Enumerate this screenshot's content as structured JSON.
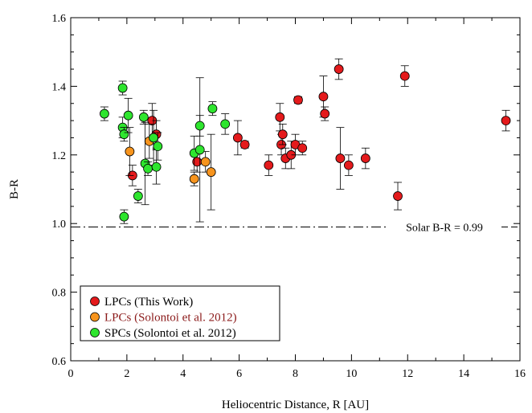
{
  "chart_data": {
    "type": "scatter",
    "xlabel": "Heliocentric Distance, R [AU]",
    "ylabel": "B-R",
    "xlim": [
      0,
      16
    ],
    "ylim": [
      0.6,
      1.6
    ],
    "xticks": [
      "0",
      "2",
      "4",
      "6",
      "8",
      "10",
      "12",
      "14",
      "16"
    ],
    "yticks": [
      "0.6",
      "0.8",
      "1.0",
      "1.2",
      "1.4",
      "1.6"
    ],
    "grid": false,
    "legend_position": "bottom-left",
    "reference_line": {
      "y": 0.99,
      "label": "Solar B-R = 0.99",
      "style": "dash-dot"
    },
    "series": [
      {
        "name": "LPCs (This Work)",
        "color": "#e41a1c",
        "label_color": "#000000",
        "points": [
          {
            "x": 2.2,
            "y": 1.14,
            "err": 0.03
          },
          {
            "x": 2.9,
            "y": 1.3,
            "err": 0.05
          },
          {
            "x": 3.05,
            "y": 1.26,
            "err": 0.04
          },
          {
            "x": 4.5,
            "y": 1.18,
            "err": 0.03
          },
          {
            "x": 5.95,
            "y": 1.25,
            "err": 0.05
          },
          {
            "x": 6.2,
            "y": 1.23,
            "err": 0.01
          },
          {
            "x": 7.05,
            "y": 1.17,
            "err": 0.03
          },
          {
            "x": 7.45,
            "y": 1.31,
            "err": 0.04
          },
          {
            "x": 7.5,
            "y": 1.23,
            "err": 0.03
          },
          {
            "x": 7.55,
            "y": 1.26,
            "err": 0.03
          },
          {
            "x": 7.65,
            "y": 1.19,
            "err": 0.03
          },
          {
            "x": 7.85,
            "y": 1.2,
            "err": 0.04
          },
          {
            "x": 8.0,
            "y": 1.23,
            "err": 0.03
          },
          {
            "x": 8.1,
            "y": 1.36,
            "err": 0.01
          },
          {
            "x": 8.25,
            "y": 1.22,
            "err": 0.02
          },
          {
            "x": 9.0,
            "y": 1.37,
            "err": 0.06
          },
          {
            "x": 9.05,
            "y": 1.32,
            "err": 0.02
          },
          {
            "x": 9.55,
            "y": 1.45,
            "err": 0.03
          },
          {
            "x": 9.6,
            "y": 1.19,
            "err": 0.09
          },
          {
            "x": 9.9,
            "y": 1.17,
            "err": 0.03
          },
          {
            "x": 10.5,
            "y": 1.19,
            "err": 0.03
          },
          {
            "x": 11.65,
            "y": 1.08,
            "err": 0.04
          },
          {
            "x": 11.9,
            "y": 1.43,
            "err": 0.03
          },
          {
            "x": 15.5,
            "y": 1.3,
            "err": 0.03
          }
        ]
      },
      {
        "name": "LPCs (Solontoi et al. 2012)",
        "color": "#f7941d",
        "label_color": "#8b1a1a",
        "points": [
          {
            "x": 2.1,
            "y": 1.21,
            "err": 0.07
          },
          {
            "x": 2.8,
            "y": 1.24,
            "err": 0.05
          },
          {
            "x": 4.4,
            "y": 1.13,
            "err": 0.02
          },
          {
            "x": 4.8,
            "y": 1.18,
            "err": 0.03
          },
          {
            "x": 5.0,
            "y": 1.15,
            "err": 0.11
          }
        ]
      },
      {
        "name": "SPCs (Solontoi et al. 2012)",
        "color": "#2ee52e",
        "label_color": "#000000",
        "points": [
          {
            "x": 1.2,
            "y": 1.32,
            "err": 0.02
          },
          {
            "x": 1.85,
            "y": 1.395,
            "err": 0.02
          },
          {
            "x": 1.85,
            "y": 1.28,
            "err": 0.03
          },
          {
            "x": 1.9,
            "y": 1.26,
            "err": 0.02
          },
          {
            "x": 1.9,
            "y": 1.02,
            "err": 0.02
          },
          {
            "x": 2.05,
            "y": 1.315,
            "err": 0.05
          },
          {
            "x": 2.4,
            "y": 1.08,
            "err": 0.02
          },
          {
            "x": 2.6,
            "y": 1.31,
            "err": 0.02
          },
          {
            "x": 2.65,
            "y": 1.175,
            "err": 0.12
          },
          {
            "x": 2.75,
            "y": 1.16,
            "err": 0.02
          },
          {
            "x": 2.95,
            "y": 1.25,
            "err": 0.08
          },
          {
            "x": 3.05,
            "y": 1.165,
            "err": 0.05
          },
          {
            "x": 3.1,
            "y": 1.225,
            "err": 0.04
          },
          {
            "x": 4.4,
            "y": 1.205,
            "err": 0.05
          },
          {
            "x": 4.6,
            "y": 1.215,
            "err": 0.21
          },
          {
            "x": 4.6,
            "y": 1.285,
            "err": 0.03
          },
          {
            "x": 5.05,
            "y": 1.335,
            "err": 0.02
          },
          {
            "x": 5.5,
            "y": 1.29,
            "err": 0.03
          }
        ]
      }
    ]
  }
}
